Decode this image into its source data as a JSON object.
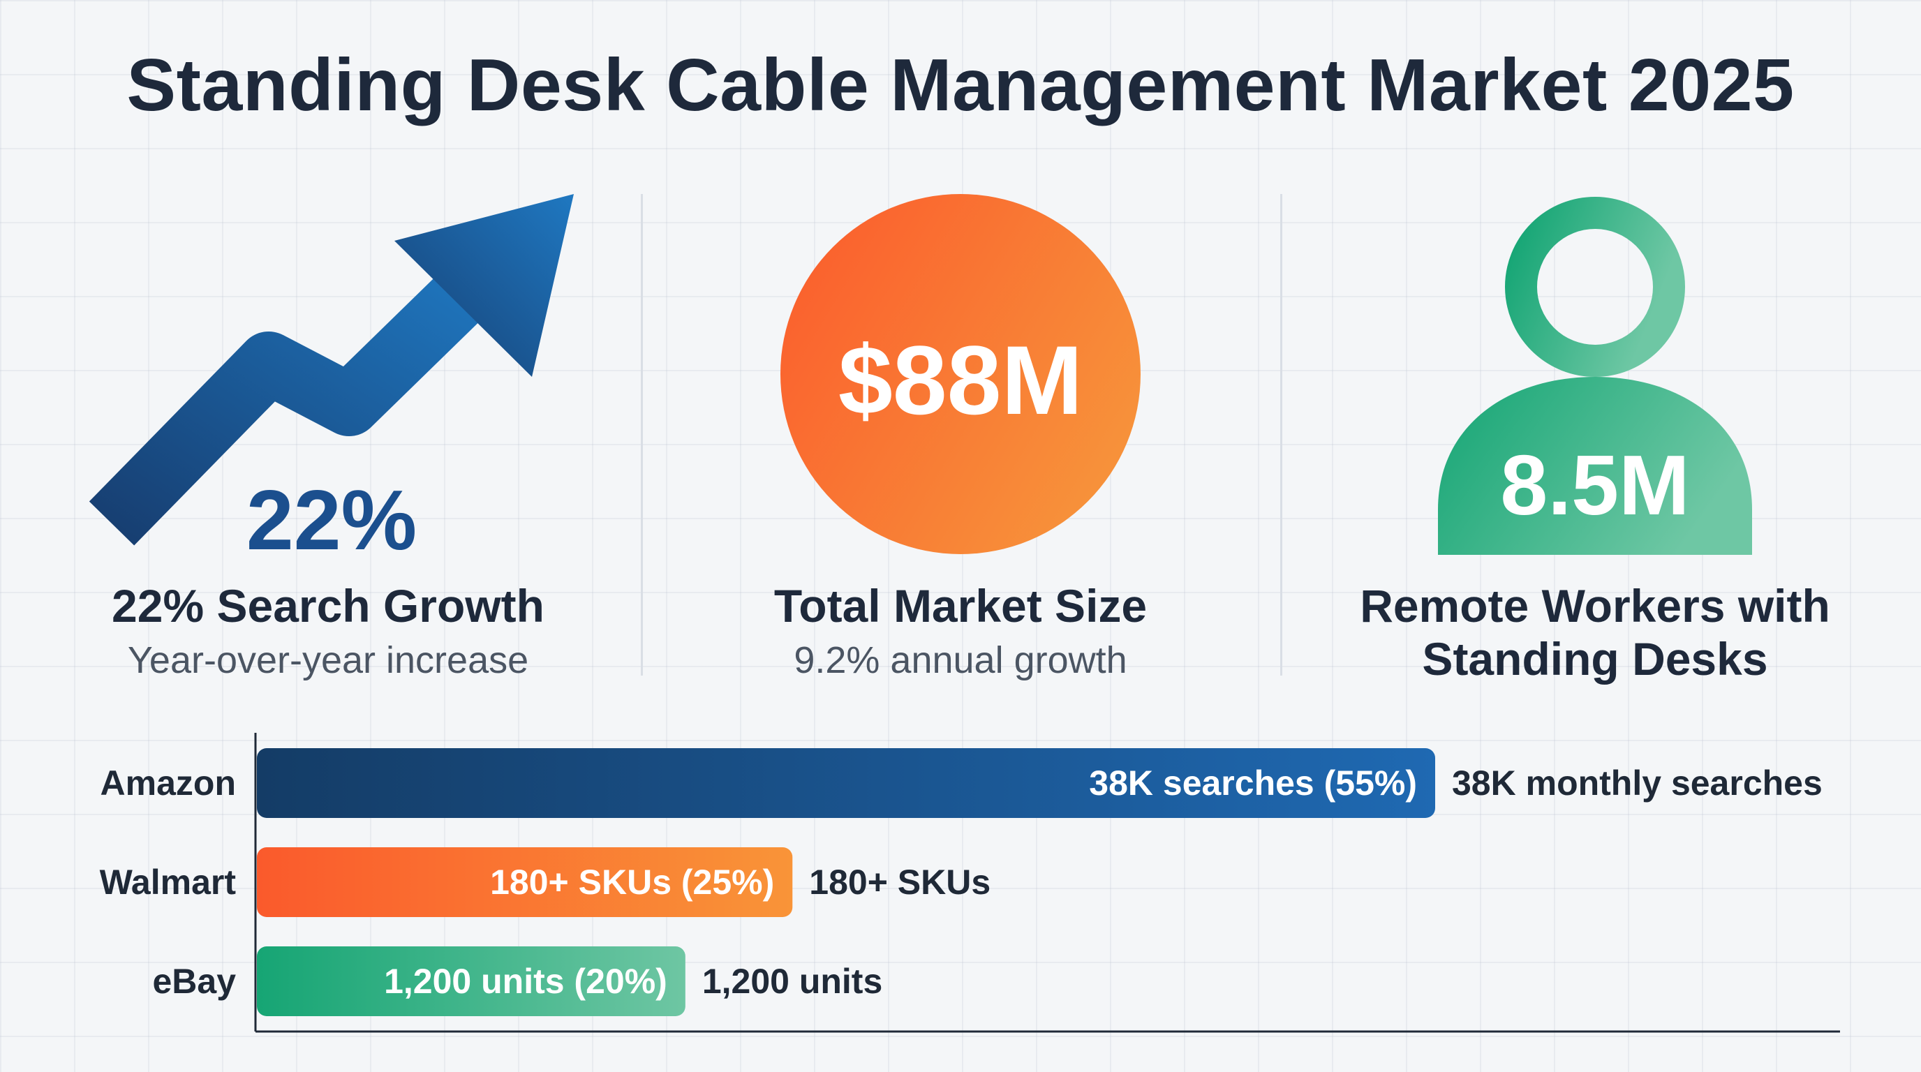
{
  "title": "Standing Desk Cable Management Market 2025",
  "colors": {
    "navy": "#1a4f8c",
    "orange": "#f46a34",
    "green": "#21a77a",
    "text": "#1e293b"
  },
  "panels": [
    {
      "icon": "trend-arrow-icon",
      "stat": "22%",
      "label": "22% Search Growth",
      "sub": "Year-over-year increase"
    },
    {
      "icon": "circle-badge-icon",
      "stat": "$88M",
      "label": "Total Market Size",
      "sub": "9.2% annual growth"
    },
    {
      "icon": "person-icon",
      "stat": "8.5M",
      "label_line1": "Remote Workers with",
      "label_line2": "Standing Desks"
    }
  ],
  "chart_data": {
    "type": "bar",
    "orientation": "horizontal",
    "categories": [
      "Amazon",
      "Walmart",
      "eBay"
    ],
    "values": [
      55,
      25,
      20
    ],
    "unit": "%",
    "inside_labels": [
      "38K searches (55%)",
      "180+ SKUs (25%)",
      "1,200 units (20%)"
    ],
    "outside_labels": [
      "38K monthly searches",
      "180+ SKUs",
      "1,200 units"
    ],
    "xlim": [
      0,
      100
    ],
    "grid": false,
    "legend": "none"
  }
}
